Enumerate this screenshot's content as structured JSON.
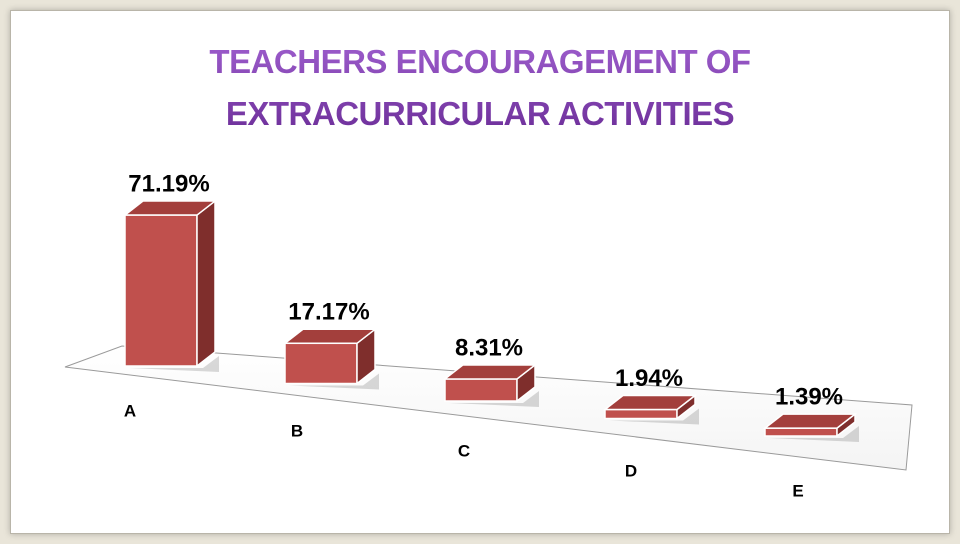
{
  "chart_data": {
    "type": "bar3d",
    "title": "TEACHERS ENCOURAGEMENT OF EXTRACURRICULAR ACTIVITIES",
    "categories": [
      "A",
      "B",
      "C",
      "D",
      "E"
    ],
    "values": [
      71.19,
      17.17,
      8.31,
      1.94,
      1.39
    ],
    "value_labels": [
      "71.19%",
      "17.17%",
      "8.31%",
      "1.94%",
      "1.39%"
    ],
    "color": "#c0504d"
  }
}
